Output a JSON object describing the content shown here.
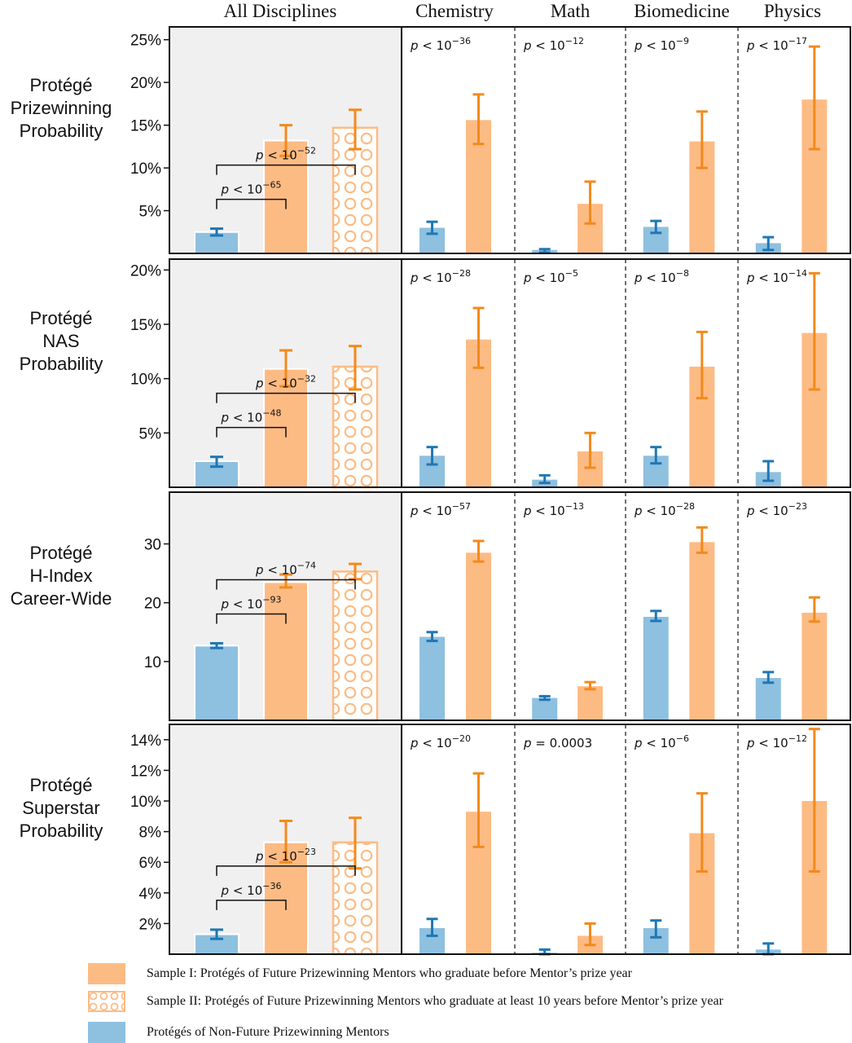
{
  "columns": [
    "All Disciplines",
    "Chemistry",
    "Math",
    "Biomedicine",
    "Physics"
  ],
  "colors": {
    "blue": "#8ec0e0",
    "blue_err": "#1f77b4",
    "orange": "#fdbb84",
    "orange_err": "#f28a1c",
    "panel_bg": "#f0f0f0"
  },
  "rows": [
    {
      "label_lines": [
        "Protégé",
        "Prizewinning",
        "Probability"
      ]
    },
    {
      "label_lines": [
        "Protégé",
        "NAS",
        "Probability"
      ]
    },
    {
      "label_lines": [
        "Protégé",
        "H-Index",
        "Career-Wide"
      ]
    },
    {
      "label_lines": [
        "Protégé",
        "Superstar",
        "Probability"
      ]
    }
  ],
  "chart_data": [
    {
      "type": "bar",
      "metric": "Protégé Prizewinning Probability",
      "unit": "%",
      "ylim": [
        0,
        26.5
      ],
      "yticks": [
        5,
        10,
        15,
        20,
        25
      ],
      "ytick_labels": [
        "5%",
        "10%",
        "15%",
        "20%",
        "25%"
      ],
      "all": {
        "values": [
          2.5,
          13.2,
          14.7
        ],
        "errors": [
          [
            2.1,
            2.9
          ],
          [
            11.4,
            15.0
          ],
          [
            12.2,
            16.8
          ]
        ],
        "brackets": [
          {
            "prefix": "p < 10",
            "exp": "−52"
          },
          {
            "prefix": "p < 10",
            "exp": "−65"
          }
        ]
      },
      "disciplines": [
        {
          "name": "Chemistry",
          "values": [
            3.0,
            15.6
          ],
          "errors": [
            [
              2.3,
              3.7
            ],
            [
              12.8,
              18.6
            ]
          ],
          "p": {
            "prefix": "p < 10",
            "exp": "−36"
          }
        },
        {
          "name": "Math",
          "values": [
            0.4,
            5.8
          ],
          "errors": [
            [
              0.1,
              0.5
            ],
            [
              3.5,
              8.4
            ]
          ],
          "p": {
            "prefix": "p < 10",
            "exp": "−12"
          }
        },
        {
          "name": "Biomedicine",
          "values": [
            3.1,
            13.1
          ],
          "errors": [
            [
              2.4,
              3.8
            ],
            [
              10.0,
              16.6
            ]
          ],
          "p": {
            "prefix": "p < 10",
            "exp": "−9"
          }
        },
        {
          "name": "Physics",
          "values": [
            1.2,
            18.0
          ],
          "errors": [
            [
              0.4,
              1.9
            ],
            [
              12.2,
              24.2
            ]
          ],
          "p": {
            "prefix": "p < 10",
            "exp": "−17"
          }
        }
      ]
    },
    {
      "type": "bar",
      "metric": "Protégé NAS Probability",
      "unit": "%",
      "ylim": [
        0,
        21
      ],
      "yticks": [
        5,
        10,
        15,
        20
      ],
      "ytick_labels": [
        "5%",
        "10%",
        "15%",
        "20%"
      ],
      "all": {
        "values": [
          2.4,
          10.9,
          11.1
        ],
        "errors": [
          [
            1.9,
            2.8
          ],
          [
            9.3,
            12.6
          ],
          [
            9.0,
            13.0
          ]
        ],
        "brackets": [
          {
            "prefix": "p < 10",
            "exp": "−32"
          },
          {
            "prefix": "p < 10",
            "exp": "−48"
          }
        ]
      },
      "disciplines": [
        {
          "name": "Chemistry",
          "values": [
            2.9,
            13.6
          ],
          "errors": [
            [
              2.1,
              3.7
            ],
            [
              11.0,
              16.5
            ]
          ],
          "p": {
            "prefix": "p < 10",
            "exp": "−28"
          }
        },
        {
          "name": "Math",
          "values": [
            0.7,
            3.3
          ],
          "errors": [
            [
              0.4,
              1.1
            ],
            [
              1.8,
              5.0
            ]
          ],
          "p": {
            "prefix": "p < 10",
            "exp": "−5"
          }
        },
        {
          "name": "Biomedicine",
          "values": [
            2.9,
            11.1
          ],
          "errors": [
            [
              2.2,
              3.7
            ],
            [
              8.2,
              14.3
            ]
          ],
          "p": {
            "prefix": "p < 10",
            "exp": "−8"
          }
        },
        {
          "name": "Physics",
          "values": [
            1.4,
            14.2
          ],
          "errors": [
            [
              0.6,
              2.4
            ],
            [
              9.0,
              19.7
            ]
          ],
          "p": {
            "prefix": "p < 10",
            "exp": "−14"
          }
        }
      ]
    },
    {
      "type": "bar",
      "metric": "Protégé H-Index Career-Wide",
      "unit": "",
      "ylim": [
        0,
        38.8
      ],
      "yticks": [
        10,
        20,
        30
      ],
      "ytick_labels": [
        "10",
        "20",
        "30"
      ],
      "all": {
        "values": [
          12.7,
          23.5,
          25.3
        ],
        "errors": [
          [
            12.3,
            13.1
          ],
          [
            22.6,
            24.8
          ],
          [
            24.0,
            26.6
          ]
        ],
        "brackets": [
          {
            "prefix": "p < 10",
            "exp": "−74"
          },
          {
            "prefix": "p < 10",
            "exp": "−93"
          }
        ]
      },
      "disciplines": [
        {
          "name": "Chemistry",
          "values": [
            14.2,
            28.5
          ],
          "errors": [
            [
              13.5,
              15.0
            ],
            [
              27.0,
              30.5
            ]
          ],
          "p": {
            "prefix": "p < 10",
            "exp": "−57"
          }
        },
        {
          "name": "Math",
          "values": [
            3.8,
            5.8
          ],
          "errors": [
            [
              3.5,
              4.1
            ],
            [
              5.3,
              6.5
            ]
          ],
          "p": {
            "prefix": "p < 10",
            "exp": "−13"
          }
        },
        {
          "name": "Biomedicine",
          "values": [
            17.6,
            30.3
          ],
          "errors": [
            [
              16.9,
              18.6
            ],
            [
              28.5,
              32.8
            ]
          ],
          "p": {
            "prefix": "p < 10",
            "exp": "−28"
          }
        },
        {
          "name": "Physics",
          "values": [
            7.2,
            18.3
          ],
          "errors": [
            [
              6.4,
              8.2
            ],
            [
              16.8,
              20.9
            ]
          ],
          "p": {
            "prefix": "p < 10",
            "exp": "−23"
          }
        }
      ]
    },
    {
      "type": "bar",
      "metric": "Protégé Superstar Probability",
      "unit": "%",
      "ylim": [
        0,
        15
      ],
      "yticks": [
        2,
        4,
        6,
        8,
        10,
        12,
        14
      ],
      "ytick_labels": [
        "2%",
        "4%",
        "6%",
        "8%",
        "10%",
        "12%",
        "14%"
      ],
      "all": {
        "values": [
          1.3,
          7.3,
          7.3
        ],
        "errors": [
          [
            1.0,
            1.6
          ],
          [
            6.0,
            8.7
          ],
          [
            5.6,
            8.9
          ]
        ],
        "brackets": [
          {
            "prefix": "p < 10",
            "exp": "−23"
          },
          {
            "prefix": "p < 10",
            "exp": "−36"
          }
        ]
      },
      "disciplines": [
        {
          "name": "Chemistry",
          "values": [
            1.7,
            9.3
          ],
          "errors": [
            [
              1.2,
              2.3
            ],
            [
              7.0,
              11.8
            ]
          ],
          "p": {
            "prefix": "p < 10",
            "exp": "−20"
          }
        },
        {
          "name": "Math",
          "values": [
            0.1,
            1.2
          ],
          "errors": [
            [
              0.0,
              0.3
            ],
            [
              0.6,
              2.0
            ]
          ],
          "p": {
            "prefix": "p = 0.0003",
            "exp": ""
          }
        },
        {
          "name": "Biomedicine",
          "values": [
            1.7,
            7.9
          ],
          "errors": [
            [
              1.1,
              2.2
            ],
            [
              5.4,
              10.5
            ]
          ],
          "p": {
            "prefix": "p < 10",
            "exp": "−6"
          }
        },
        {
          "name": "Physics",
          "values": [
            0.3,
            10.0
          ],
          "errors": [
            [
              0.0,
              0.7
            ],
            [
              5.4,
              14.7
            ]
          ],
          "p": {
            "prefix": "p < 10",
            "exp": "−12"
          }
        }
      ]
    }
  ],
  "legend": [
    {
      "key": "sample1",
      "label": "Sample I: Protégés of Future Prizewinning Mentors who graduate before Mentor’s prize year"
    },
    {
      "key": "sample2",
      "label": "Sample II: Protégés of Future Prizewinning Mentors who graduate at least 10 years before Mentor’s prize year"
    },
    {
      "key": "nonfuture",
      "label": "Protégés of Non-Future Prizewinning Mentors"
    }
  ]
}
